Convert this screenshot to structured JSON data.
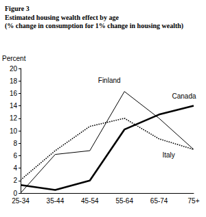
{
  "chart_data": {
    "type": "line",
    "title": "Figure 3",
    "subtitle": [
      "Estimated housing wealth effect by age",
      "(% change in consumption for 1% change in housing wealth)"
    ],
    "y_label": "Percent",
    "categories": [
      "25-34",
      "35-44",
      "45-54",
      "55-64",
      "65-74",
      "75+"
    ],
    "series": [
      {
        "name": "Finland",
        "color": "#000000",
        "line_style": "solid",
        "marker": "none",
        "values": [
          0,
          6.2,
          6.8,
          16.3,
          12,
          7
        ]
      },
      {
        "name": "Italy",
        "color": "#000000",
        "line_style": "dotted",
        "marker": "none",
        "values": [
          2.1,
          6.8,
          10.7,
          12,
          8.7,
          7
        ]
      },
      {
        "name": "Canada",
        "color": "#000000",
        "line_style": "thick",
        "marker": "none",
        "values": [
          1.3,
          0.5,
          2,
          10.2,
          12.6,
          14
        ]
      }
    ],
    "ylim": [
      0,
      20
    ],
    "yticks": [
      0,
      2,
      4,
      6,
      8,
      10,
      12,
      14,
      16,
      18,
      20
    ],
    "grid": false
  }
}
